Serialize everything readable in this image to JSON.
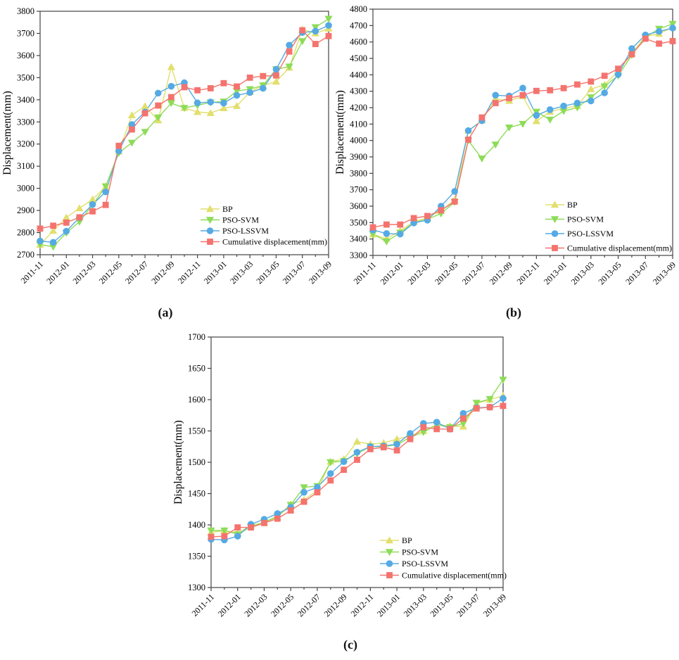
{
  "page": {
    "background_color": "#ffffff",
    "figure_type": "three panel line chart comparison"
  },
  "colors": {
    "bp": "#E2DF6E",
    "pso_svm": "#8DDC58",
    "pso_lssvm": "#55AAE4",
    "cumulative": "#F4736E",
    "axis": "#444444"
  },
  "chart_data": [
    {
      "id": "a",
      "caption": "(a)",
      "type": "line",
      "ylabel": "Displacement(mm)",
      "ylim": [
        2700,
        3800
      ],
      "ytick_step": 100,
      "grid": false,
      "legend_position": "inside-bottom-right",
      "categories": [
        "2011-11",
        "2011-12",
        "2012-01",
        "2012-02",
        "2012-03",
        "2012-04",
        "2012-05",
        "2012-06",
        "2012-07",
        "2012-08",
        "2012-09",
        "2012-10",
        "2012-11",
        "2012-12",
        "2013-01",
        "2013-02",
        "2013-03",
        "2013-04",
        "2013-05",
        "2013-06",
        "2013-07",
        "2013-08",
        "2013-09"
      ],
      "xtick_labels": [
        "2011-11",
        "2012-01",
        "2012-03",
        "2012-05",
        "2012-07",
        "2012-09",
        "2012-11",
        "2013-01",
        "2013-03",
        "2013-05",
        "2013-07",
        "2013-09"
      ],
      "series": [
        {
          "name": "BP",
          "color": "#E2DF6E",
          "marker": "triangle-up",
          "values": [
            2745,
            2808,
            2868,
            2910,
            2950,
            3008,
            3166,
            3330,
            3371,
            3307,
            3548,
            3363,
            3345,
            3340,
            3362,
            3372,
            3435,
            3465,
            3482,
            3545,
            3718,
            3700,
            3722
          ]
        },
        {
          "name": "PSO-SVM",
          "color": "#8DDC58",
          "marker": "triangle-down",
          "values": [
            2746,
            2736,
            2799,
            2849,
            2924,
            3009,
            3160,
            3206,
            3255,
            3320,
            3385,
            3363,
            3375,
            3388,
            3392,
            3440,
            3448,
            3465,
            3538,
            3550,
            3665,
            3728,
            3766
          ]
        },
        {
          "name": "PSO-LSSVM",
          "color": "#55AAE4",
          "marker": "circle",
          "values": [
            2762,
            2756,
            2806,
            2868,
            2927,
            2984,
            3168,
            3288,
            3345,
            3430,
            3461,
            3477,
            3386,
            3390,
            3385,
            3420,
            3433,
            3452,
            3538,
            3647,
            3704,
            3710,
            3736
          ]
        },
        {
          "name": "Cumulative displacement(mm)",
          "color": "#F4736E",
          "marker": "square",
          "values": [
            2818,
            2831,
            2845,
            2869,
            2896,
            2925,
            3192,
            3266,
            3339,
            3374,
            3412,
            3457,
            3443,
            3452,
            3475,
            3460,
            3500,
            3507,
            3510,
            3618,
            3714,
            3652,
            3688
          ]
        }
      ]
    },
    {
      "id": "b",
      "caption": "(b)",
      "type": "line",
      "ylabel": "Displacement(mm)",
      "ylim": [
        3300,
        4800
      ],
      "ytick_step": 100,
      "grid": false,
      "legend_position": "inside-bottom-right",
      "categories": [
        "2011-11",
        "2011-12",
        "2012-01",
        "2012-02",
        "2012-03",
        "2012-04",
        "2012-05",
        "2012-06",
        "2012-07",
        "2012-08",
        "2012-09",
        "2012-10",
        "2012-11",
        "2012-12",
        "2013-01",
        "2013-02",
        "2013-03",
        "2013-04",
        "2013-05",
        "2013-06",
        "2013-07",
        "2013-08",
        "2013-09"
      ],
      "xtick_labels": [
        "2011-11",
        "2012-01",
        "2012-03",
        "2012-05",
        "2012-07",
        "2012-09",
        "2012-11",
        "2013-01",
        "2013-03",
        "2013-05",
        "2013-07",
        "2013-09"
      ],
      "series": [
        {
          "name": "BP",
          "color": "#E2DF6E",
          "marker": "triangle-up",
          "values": [
            3428,
            3402,
            3450,
            3505,
            3530,
            3572,
            3638,
            4060,
            4122,
            4254,
            4241,
            4270,
            4118,
            4175,
            4197,
            4210,
            4313,
            4340,
            4420,
            4530,
            4635,
            4650,
            4690
          ]
        },
        {
          "name": "PSO-SVM",
          "color": "#8DDC58",
          "marker": "triangle-down",
          "values": [
            3430,
            3385,
            3438,
            3500,
            3520,
            3555,
            3625,
            4000,
            3890,
            3975,
            4079,
            4101,
            4175,
            4127,
            4179,
            4201,
            4263,
            4330,
            4395,
            4520,
            4630,
            4680,
            4710
          ]
        },
        {
          "name": "PSO-LSSVM",
          "color": "#55AAE4",
          "marker": "circle",
          "values": [
            3455,
            3433,
            3430,
            3498,
            3515,
            3600,
            3690,
            4060,
            4120,
            4276,
            4271,
            4319,
            4153,
            4188,
            4210,
            4228,
            4241,
            4290,
            4402,
            4560,
            4643,
            4664,
            4685
          ]
        },
        {
          "name": "Cumulative displacement(mm)",
          "color": "#F4736E",
          "marker": "square",
          "values": [
            3471,
            3488,
            3488,
            3527,
            3540,
            3575,
            3628,
            4005,
            4140,
            4228,
            4258,
            4276,
            4302,
            4306,
            4319,
            4341,
            4359,
            4394,
            4437,
            4525,
            4620,
            4590,
            4605
          ]
        }
      ]
    },
    {
      "id": "c",
      "caption": "(c)",
      "type": "line",
      "ylabel": "Displacement(mm)",
      "ylim": [
        1300,
        1700
      ],
      "ytick_step": 50,
      "grid": false,
      "legend_position": "inside-bottom-right",
      "categories": [
        "2011-11",
        "2011-12",
        "2012-01",
        "2012-02",
        "2012-03",
        "2012-04",
        "2012-05",
        "2012-06",
        "2012-07",
        "2012-08",
        "2012-09",
        "2012-10",
        "2012-11",
        "2012-12",
        "2013-01",
        "2013-02",
        "2013-03",
        "2013-04",
        "2013-05",
        "2013-06",
        "2013-07",
        "2013-08",
        "2013-09"
      ],
      "xtick_labels": [
        "2011-11",
        "2012-01",
        "2012-03",
        "2012-05",
        "2012-07",
        "2012-09",
        "2012-11",
        "2013-01",
        "2013-03",
        "2013-05",
        "2013-07",
        "2013-09"
      ],
      "series": [
        {
          "name": "BP",
          "color": "#E2DF6E",
          "marker": "triangle-up",
          "values": [
            1388,
            1391,
            1387,
            1399,
            1404,
            1412,
            1433,
            1440,
            1455,
            1501,
            1505,
            1533,
            1529,
            1531,
            1537,
            1542,
            1550,
            1560,
            1558,
            1557,
            1594,
            1600,
            1606
          ]
        },
        {
          "name": "PSO-SVM",
          "color": "#8DDC58",
          "marker": "triangle-down",
          "values": [
            1391,
            1391,
            1385,
            1397,
            1404,
            1414,
            1432,
            1460,
            1462,
            1500,
            1502,
            1514,
            1525,
            1525,
            1528,
            1540,
            1548,
            1560,
            1556,
            1562,
            1595,
            1601,
            1632
          ]
        },
        {
          "name": "PSO-LSSVM",
          "color": "#55AAE4",
          "marker": "circle",
          "values": [
            1377,
            1376,
            1382,
            1401,
            1409,
            1418,
            1428,
            1452,
            1460,
            1482,
            1501,
            1516,
            1525,
            1526,
            1529,
            1546,
            1562,
            1564,
            1553,
            1578,
            1587,
            1588,
            1602
          ]
        },
        {
          "name": "Cumulative displacement(mm)",
          "color": "#F4736E",
          "marker": "square",
          "values": [
            1381,
            1382,
            1396,
            1396,
            1403,
            1410,
            1423,
            1437,
            1452,
            1471,
            1488,
            1504,
            1521,
            1524,
            1519,
            1537,
            1556,
            1553,
            1553,
            1570,
            1586,
            1588,
            1590
          ]
        }
      ]
    }
  ]
}
